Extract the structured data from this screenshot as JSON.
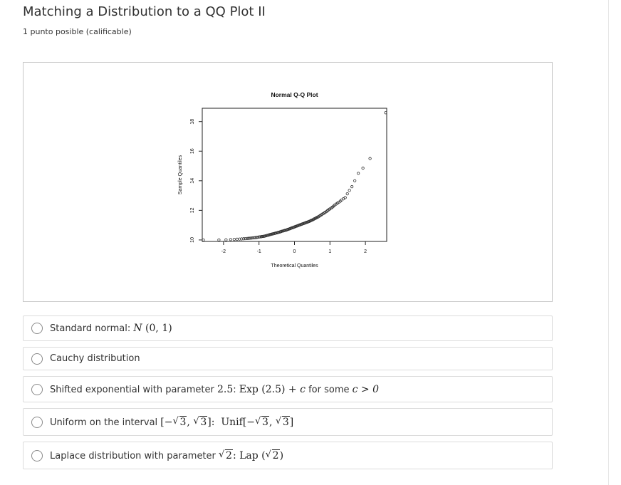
{
  "problem": {
    "title": "Matching a Distribution to a QQ Plot II",
    "points": "1 punto posible (calificable)"
  },
  "chart_data": {
    "type": "scatter",
    "title": "Normal Q-Q Plot",
    "xlabel": "Theoretical Quantiles",
    "ylabel": "Sample Quantiles",
    "xlim": [
      -2.6,
      2.6
    ],
    "ylim": [
      9.9,
      18.9
    ],
    "x_ticks": [
      "-2",
      "-1",
      "0",
      "1",
      "2"
    ],
    "y_ticks": [
      "10",
      "12",
      "14",
      "16",
      "18"
    ],
    "grid": false,
    "points": [
      [
        -2.57,
        10.0
      ],
      [
        -2.13,
        10.0
      ],
      [
        -1.93,
        10.01
      ],
      [
        -1.8,
        10.03
      ],
      [
        -1.7,
        10.04
      ],
      [
        -1.62,
        10.05
      ],
      [
        -1.55,
        10.06
      ],
      [
        -1.49,
        10.07
      ],
      [
        -1.43,
        10.08
      ],
      [
        -1.38,
        10.09
      ],
      [
        -1.33,
        10.1
      ],
      [
        -1.29,
        10.11
      ],
      [
        -1.25,
        10.12
      ],
      [
        -1.21,
        10.13
      ],
      [
        -1.17,
        10.14
      ],
      [
        -1.13,
        10.15
      ],
      [
        -1.1,
        10.16
      ],
      [
        -1.07,
        10.17
      ],
      [
        -1.04,
        10.18
      ],
      [
        -1.0,
        10.2
      ],
      [
        -0.97,
        10.21
      ],
      [
        -0.94,
        10.22
      ],
      [
        -0.92,
        10.23
      ],
      [
        -0.89,
        10.24
      ],
      [
        -0.86,
        10.25
      ],
      [
        -0.84,
        10.26
      ],
      [
        -0.81,
        10.28
      ],
      [
        -0.78,
        10.3
      ],
      [
        -0.76,
        10.31
      ],
      [
        -0.73,
        10.33
      ],
      [
        -0.71,
        10.35
      ],
      [
        -0.68,
        10.37
      ],
      [
        -0.66,
        10.38
      ],
      [
        -0.63,
        10.4
      ],
      [
        -0.61,
        10.41
      ],
      [
        -0.59,
        10.42
      ],
      [
        -0.56,
        10.44
      ],
      [
        -0.54,
        10.45
      ],
      [
        -0.52,
        10.47
      ],
      [
        -0.49,
        10.48
      ],
      [
        -0.47,
        10.5
      ],
      [
        -0.45,
        10.51
      ],
      [
        -0.42,
        10.53
      ],
      [
        -0.4,
        10.55
      ],
      [
        -0.38,
        10.57
      ],
      [
        -0.36,
        10.59
      ],
      [
        -0.33,
        10.6
      ],
      [
        -0.31,
        10.62
      ],
      [
        -0.29,
        10.63
      ],
      [
        -0.27,
        10.65
      ],
      [
        -0.24,
        10.66
      ],
      [
        -0.22,
        10.68
      ],
      [
        -0.2,
        10.7
      ],
      [
        -0.18,
        10.72
      ],
      [
        -0.15,
        10.74
      ],
      [
        -0.13,
        10.76
      ],
      [
        -0.11,
        10.78
      ],
      [
        -0.09,
        10.8
      ],
      [
        -0.07,
        10.82
      ],
      [
        -0.04,
        10.84
      ],
      [
        -0.02,
        10.86
      ],
      [
        0.0,
        10.88
      ],
      [
        0.02,
        10.9
      ],
      [
        0.04,
        10.92
      ],
      [
        0.07,
        10.94
      ],
      [
        0.09,
        10.96
      ],
      [
        0.11,
        10.98
      ],
      [
        0.13,
        11.0
      ],
      [
        0.15,
        11.02
      ],
      [
        0.18,
        11.04
      ],
      [
        0.2,
        11.06
      ],
      [
        0.22,
        11.08
      ],
      [
        0.24,
        11.1
      ],
      [
        0.27,
        11.12
      ],
      [
        0.29,
        11.14
      ],
      [
        0.31,
        11.16
      ],
      [
        0.33,
        11.18
      ],
      [
        0.36,
        11.2
      ],
      [
        0.38,
        11.22
      ],
      [
        0.4,
        11.24
      ],
      [
        0.42,
        11.26
      ],
      [
        0.45,
        11.29
      ],
      [
        0.47,
        11.32
      ],
      [
        0.49,
        11.34
      ],
      [
        0.52,
        11.37
      ],
      [
        0.54,
        11.4
      ],
      [
        0.56,
        11.43
      ],
      [
        0.59,
        11.46
      ],
      [
        0.61,
        11.49
      ],
      [
        0.63,
        11.52
      ],
      [
        0.66,
        11.55
      ],
      [
        0.68,
        11.58
      ],
      [
        0.71,
        11.62
      ],
      [
        0.73,
        11.66
      ],
      [
        0.76,
        11.7
      ],
      [
        0.78,
        11.74
      ],
      [
        0.81,
        11.78
      ],
      [
        0.84,
        11.82
      ],
      [
        0.86,
        11.86
      ],
      [
        0.89,
        11.9
      ],
      [
        0.92,
        11.95
      ],
      [
        0.94,
        12.0
      ],
      [
        0.97,
        12.05
      ],
      [
        1.0,
        12.1
      ],
      [
        1.04,
        12.16
      ],
      [
        1.07,
        12.22
      ],
      [
        1.1,
        12.28
      ],
      [
        1.13,
        12.35
      ],
      [
        1.17,
        12.42
      ],
      [
        1.21,
        12.48
      ],
      [
        1.25,
        12.55
      ],
      [
        1.29,
        12.62
      ],
      [
        1.33,
        12.7
      ],
      [
        1.38,
        12.78
      ],
      [
        1.43,
        12.86
      ],
      [
        1.49,
        13.12
      ],
      [
        1.55,
        13.35
      ],
      [
        1.62,
        13.6
      ],
      [
        1.7,
        14.0
      ],
      [
        1.8,
        14.5
      ],
      [
        1.93,
        14.85
      ],
      [
        2.13,
        15.5
      ],
      [
        2.57,
        18.6
      ]
    ]
  },
  "options": [
    {
      "id": "opt1",
      "text": "Standard normal: ",
      "math": "N (0, 1)"
    },
    {
      "id": "opt2",
      "text": "Cauchy distribution"
    },
    {
      "id": "opt3",
      "text": "Shifted exponential with parameter ",
      "param": "2.5",
      "sep": ": ",
      "math": "Exp (2.5) + ",
      "var_c": "c",
      "tail": " for some ",
      "cond": "c > 0"
    },
    {
      "id": "opt4",
      "text": "Uniform on the interval ",
      "math": "Unif"
    },
    {
      "id": "opt5",
      "text": "Laplace distribution with parameter ",
      "math": "Lap"
    }
  ]
}
